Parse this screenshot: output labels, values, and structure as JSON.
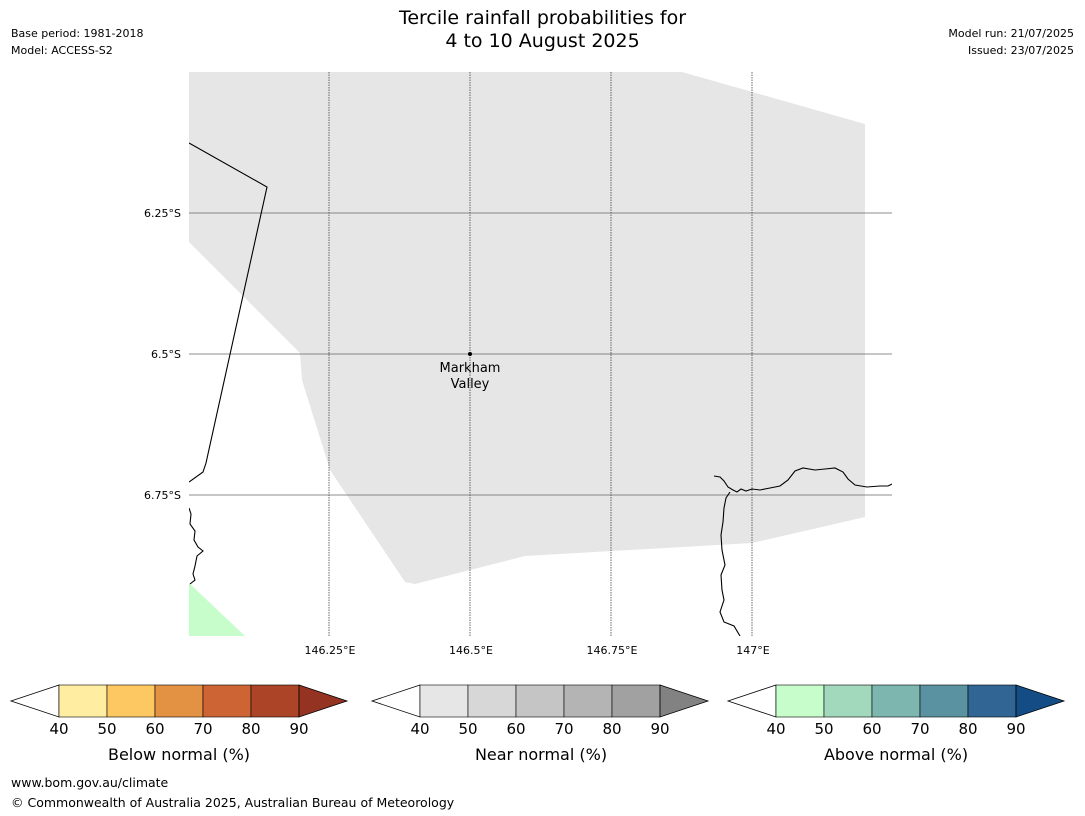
{
  "header": {
    "title_line1": "Tercile rainfall probabilities for",
    "title_line2": "4 to 10 August 2025",
    "base_period": "Base period: 1981-2018",
    "model": "Model: ACCESS-S2",
    "model_run": "Model run: 21/07/2025",
    "issued": "Issued: 23/07/2025"
  },
  "map": {
    "lat_labels": [
      "6.25°S",
      "6.5°S",
      "6.75°S"
    ],
    "lon_labels": [
      "146.25°E",
      "146.5°E",
      "146.75°E",
      "147°E"
    ],
    "location": {
      "name_line1": "Markham",
      "name_line2": "Valley"
    },
    "colors": {
      "near_normal_40_50": "#e6e6e6",
      "above_normal_40_50": "#c7fdcb",
      "coast": "#000000",
      "grid": "#555555"
    }
  },
  "legends": [
    {
      "title": "Below normal (%)",
      "ticks": [
        "40",
        "50",
        "60",
        "70",
        "80",
        "90"
      ],
      "colors": [
        "#ffeea1",
        "#fdc862",
        "#e39244",
        "#cd6433",
        "#ac4527",
        "#953322"
      ]
    },
    {
      "title": "Near normal (%)",
      "ticks": [
        "40",
        "50",
        "60",
        "70",
        "80",
        "90"
      ],
      "colors": [
        "#e6e6e6",
        "#d7d7d7",
        "#c5c5c5",
        "#b4b4b4",
        "#a1a1a1",
        "#828282"
      ]
    },
    {
      "title": "Above normal (%)",
      "ticks": [
        "40",
        "50",
        "60",
        "70",
        "80",
        "90"
      ],
      "colors": [
        "#c7fdcb",
        "#a2d9bc",
        "#7db6ae",
        "#5b92a1",
        "#316593",
        "#144d85"
      ]
    }
  ],
  "footer": {
    "url": "www.bom.gov.au/climate",
    "copyright": "© Commonwealth of Australia 2025, Australian Bureau of Meteorology"
  }
}
